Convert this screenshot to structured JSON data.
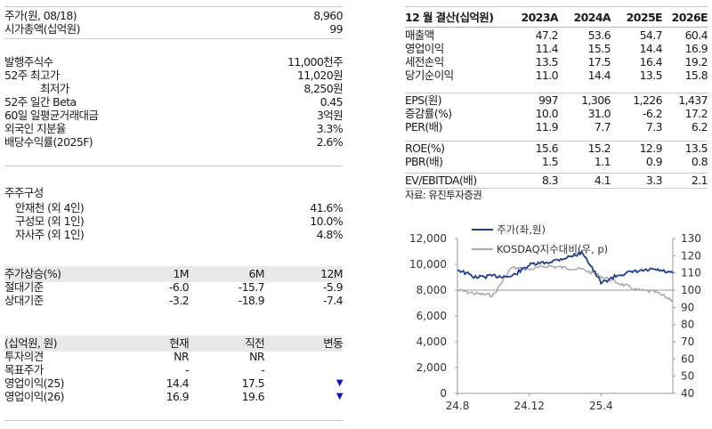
{
  "left_panel": {
    "price_block": [
      {
        "label": "주가(원, 08/18)",
        "value": "8,960"
      },
      {
        "label": "시가총액(십억원)",
        "value": "99"
      }
    ],
    "share_block": [
      {
        "label": "발행주식수",
        "value": "11,000천주"
      },
      {
        "label": "52주  최고가",
        "value": "11,020원"
      },
      {
        "label": "최저가",
        "value": "8,250원"
      },
      {
        "label": "52주 일간 Beta",
        "value": "0.45"
      },
      {
        "label": "60일 일평균거래대금",
        "value": "3억원"
      },
      {
        "label": "외국인 지분율",
        "value": "3.3%"
      },
      {
        "label": "배당수익률(2025F)",
        "value": "2.6%"
      }
    ],
    "shareholders": {
      "title": "주주구성",
      "items": [
        {
          "label": "안재천 (외 4인)",
          "value": "41.6%"
        },
        {
          "label": "구성모 (외 1인)",
          "value": "10.0%"
        },
        {
          "label": "자사주 (외 1인)",
          "value": "4.8%"
        }
      ]
    },
    "performance": {
      "header": {
        "label": "주가상승(%)",
        "cols": [
          "1M",
          "6M",
          "12M"
        ]
      },
      "rows": [
        {
          "label": "절대기준",
          "values": [
            "-6.0",
            "-15.7",
            "-5.9"
          ]
        },
        {
          "label": "상대기준",
          "values": [
            "-3.2",
            "-18.9",
            "-7.4"
          ]
        }
      ]
    },
    "estimates": {
      "header": {
        "label": "(십억원, 원)",
        "cols": [
          "현재",
          "직전",
          "변동"
        ]
      },
      "rows": [
        {
          "label": "투자의견",
          "values": [
            "NR",
            "NR",
            ""
          ]
        },
        {
          "label": "목표주가",
          "values": [
            "-",
            "-",
            ""
          ]
        },
        {
          "label": "영업이익(25)",
          "values": [
            "14.4",
            "17.5",
            "▼"
          ]
        },
        {
          "label": "영업이익(26)",
          "values": [
            "16.9",
            "19.6",
            "▼"
          ]
        }
      ],
      "down_arrow_color": "#1010d0"
    }
  },
  "financials": {
    "header": {
      "label": "12 월 결산(십억원)",
      "cols": [
        "2023A",
        "2024A",
        "2025E",
        "2026E"
      ]
    },
    "group1": [
      {
        "label": "매출액",
        "values": [
          "47.2",
          "53.6",
          "54.7",
          "60.4"
        ]
      },
      {
        "label": "영업이익",
        "values": [
          "11.4",
          "15.5",
          "14.4",
          "16.9"
        ]
      },
      {
        "label": "세전손익",
        "values": [
          "13.5",
          "17.5",
          "16.4",
          "19.2"
        ]
      },
      {
        "label": "당기순이익",
        "values": [
          "11.0",
          "14.4",
          "13.5",
          "15.8"
        ]
      }
    ],
    "group2": [
      {
        "label": "EPS(원)",
        "values": [
          "997",
          "1,306",
          "1,226",
          "1,437"
        ]
      },
      {
        "label": "증감률(%)",
        "values": [
          "10.0",
          "31.0",
          "-6.2",
          "17.2"
        ]
      },
      {
        "label": "PER(배)",
        "values": [
          "11.9",
          "7.7",
          "7.3",
          "6.2"
        ]
      }
    ],
    "group3": [
      {
        "label": "ROE(%)",
        "values": [
          "15.6",
          "15.2",
          "12.9",
          "13.5"
        ]
      },
      {
        "label": "PBR(배)",
        "values": [
          "1.5",
          "1.1",
          "0.9",
          "0.8"
        ]
      }
    ],
    "group4": [
      {
        "label": "EV/EBITDA(배)",
        "values": [
          "8.3",
          "4.1",
          "3.3",
          "2.1"
        ]
      }
    ],
    "source": "자료: 유진투자증권"
  },
  "chart_data": {
    "type": "line",
    "title": "",
    "xlabel": "",
    "ylabel": "주가(원)",
    "y2label": "KOSDAQ지수대비(p)",
    "x_ticks": [
      "24.8",
      "24.12",
      "25.4"
    ],
    "ylim": [
      0,
      12000
    ],
    "y_ticks": [
      "12,000",
      "10,000",
      "8,000",
      "6,000",
      "4,000",
      "2,000",
      "0"
    ],
    "y2lim": [
      40,
      130
    ],
    "y2_ticks": [
      "130",
      "120",
      "110",
      "100",
      "90",
      "80",
      "70",
      "60",
      "50",
      "40"
    ],
    "legend": [
      "주가(좌,원)",
      "KOSDAQ지수대비(우, p)"
    ],
    "legend_position": "top",
    "grid": false,
    "reference_line_y2": 100,
    "x": [
      "24.8",
      "24.9",
      "24.10",
      "24.11",
      "24.12",
      "25.1",
      "25.2",
      "25.3",
      "25.4",
      "25.5",
      "25.6",
      "25.7",
      "25.8"
    ],
    "series": [
      {
        "name": "주가(좌,원)",
        "color": "#1f3f8f",
        "axis": "left",
        "values": [
          9600,
          9000,
          9100,
          9050,
          9950,
          10150,
          10500,
          10900,
          8550,
          9200,
          9450,
          9600,
          9300
        ]
      },
      {
        "name": "KOSDAQ지수대비(우, p)",
        "color": "#a8a8a8",
        "axis": "right",
        "values": [
          100,
          98,
          97,
          113,
          112,
          114,
          113,
          112,
          108,
          104,
          100,
          99,
          94
        ]
      }
    ]
  }
}
